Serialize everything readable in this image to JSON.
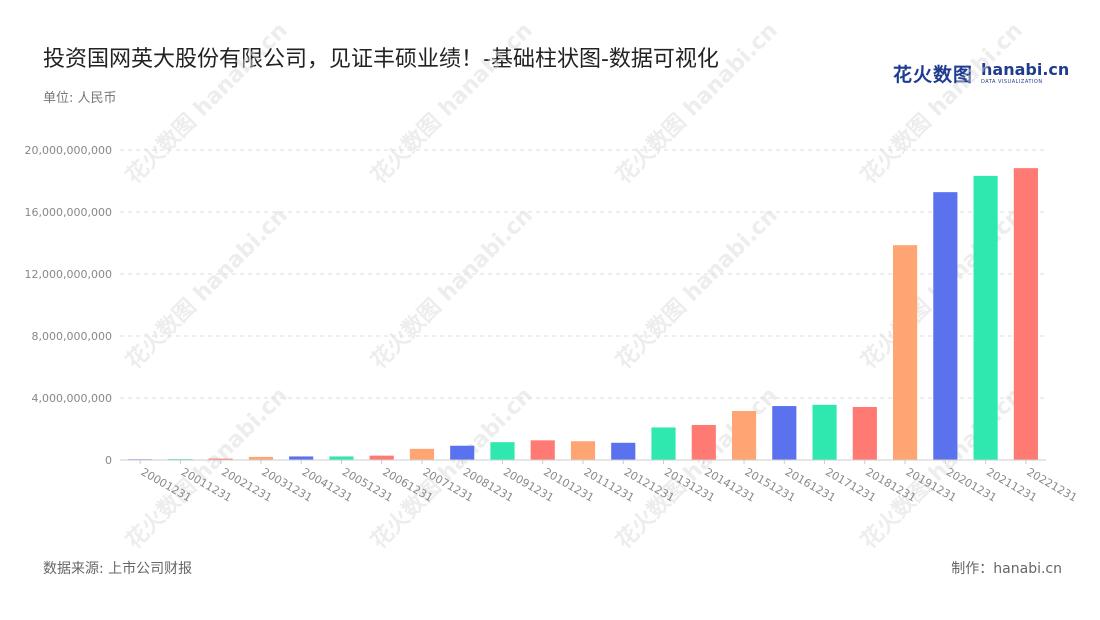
{
  "header": {
    "title": "投资国网英大股份有限公司，见证丰硕业绩！-基础柱状图-数据可视化",
    "unit": "单位: 人民币"
  },
  "logo": {
    "cn": "花火数图",
    "en": "hanabi.cn",
    "sub": "DATA VISUALIZATION"
  },
  "footer": {
    "source": "数据来源: 上市公司财报",
    "credit": "制作：hanabi.cn"
  },
  "watermark_text": "花火数图 hanabi.cn",
  "colors": {
    "palette": [
      "#5b72ee",
      "#2ee8b0",
      "#ff7a72",
      "#ffa472"
    ],
    "grid": "#dddddd",
    "axis": "#cccccc"
  },
  "chart_data": {
    "type": "bar",
    "categories": [
      "20001231",
      "20011231",
      "20021231",
      "20031231",
      "20041231",
      "20051231",
      "20061231",
      "20071231",
      "20081231",
      "20091231",
      "20101231",
      "20111231",
      "20121231",
      "20131231",
      "20141231",
      "20151231",
      "20161231",
      "20171231",
      "20181231",
      "20191231",
      "20201231",
      "20211231",
      "20221231"
    ],
    "values": [
      50000000,
      60000000,
      90000000,
      200000000,
      230000000,
      230000000,
      280000000,
      720000000,
      920000000,
      1150000000,
      1270000000,
      1210000000,
      1110000000,
      2100000000,
      2260000000,
      3160000000,
      3480000000,
      3560000000,
      3420000000,
      13860000000,
      17280000000,
      18330000000,
      18830000000
    ],
    "ylim": [
      0,
      20000000000
    ],
    "yticks": [
      0,
      4000000000,
      8000000000,
      12000000000,
      16000000000,
      20000000000
    ],
    "ytick_labels": [
      "0",
      "4,000,000,000",
      "8,000,000,000",
      "12,000,000,000",
      "16,000,000,000",
      "20,000,000,000"
    ],
    "grid": true,
    "legend": "none"
  }
}
